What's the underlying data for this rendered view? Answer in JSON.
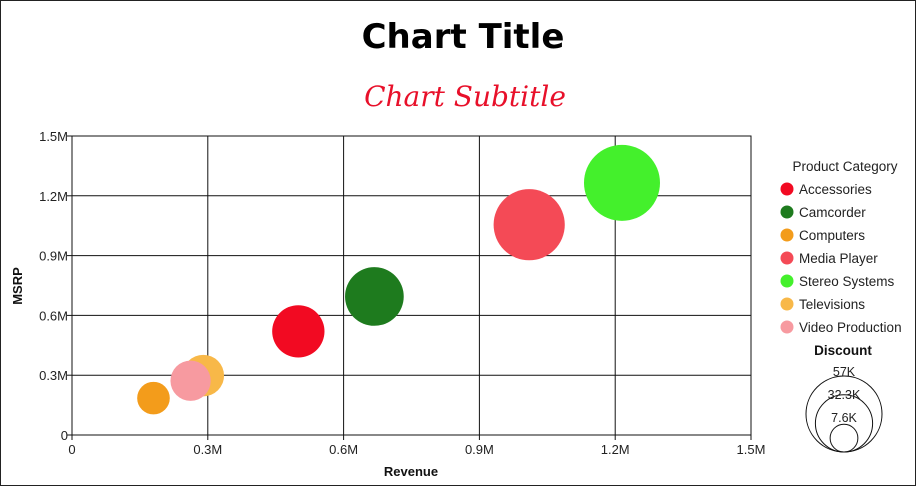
{
  "chart_data": {
    "type": "scatter",
    "title": "Chart Title",
    "subtitle": "Chart Subtitle",
    "xlabel": "Revenue",
    "ylabel": "MSRP",
    "xlim": [
      0,
      1500000
    ],
    "ylim": [
      0,
      1500000
    ],
    "x_ticks": [
      0,
      300000,
      600000,
      900000,
      1200000,
      1500000
    ],
    "y_ticks": [
      0,
      300000,
      600000,
      900000,
      1200000,
      1500000
    ],
    "x_tick_labels": [
      "0",
      "0.3M",
      "0.6M",
      "0.9M",
      "1.2M",
      "1.5M"
    ],
    "y_tick_labels": [
      "0",
      "0.3M",
      "0.6M",
      "0.9M",
      "1.2M",
      "1.5M"
    ],
    "grid": true,
    "legend": {
      "title": "Product Category",
      "placement": "right"
    },
    "size_legend": {
      "title": "Discount",
      "labels": [
        "57K",
        "32.3K",
        "7.6K"
      ],
      "values": [
        57000,
        32300,
        7600
      ]
    },
    "series": [
      {
        "name": "Accessories",
        "color": "#f20a22",
        "x": 500000,
        "y": 520000,
        "size": 27000
      },
      {
        "name": "Camcorder",
        "color": "#1e7b1e",
        "x": 668000,
        "y": 695000,
        "size": 34000
      },
      {
        "name": "Computers",
        "color": "#f39c1b",
        "x": 180000,
        "y": 185000,
        "size": 10500
      },
      {
        "name": "Media Player",
        "color": "#f44a56",
        "x": 1010000,
        "y": 1055000,
        "size": 50000
      },
      {
        "name": "Stereo Systems",
        "color": "#44f02c",
        "x": 1215000,
        "y": 1265000,
        "size": 57000
      },
      {
        "name": "Televisions",
        "color": "#f8b848",
        "x": 290000,
        "y": 298000,
        "size": 17000
      },
      {
        "name": "Video Production",
        "color": "#f79aa0",
        "x": 262000,
        "y": 272000,
        "size": 16000
      }
    ]
  }
}
